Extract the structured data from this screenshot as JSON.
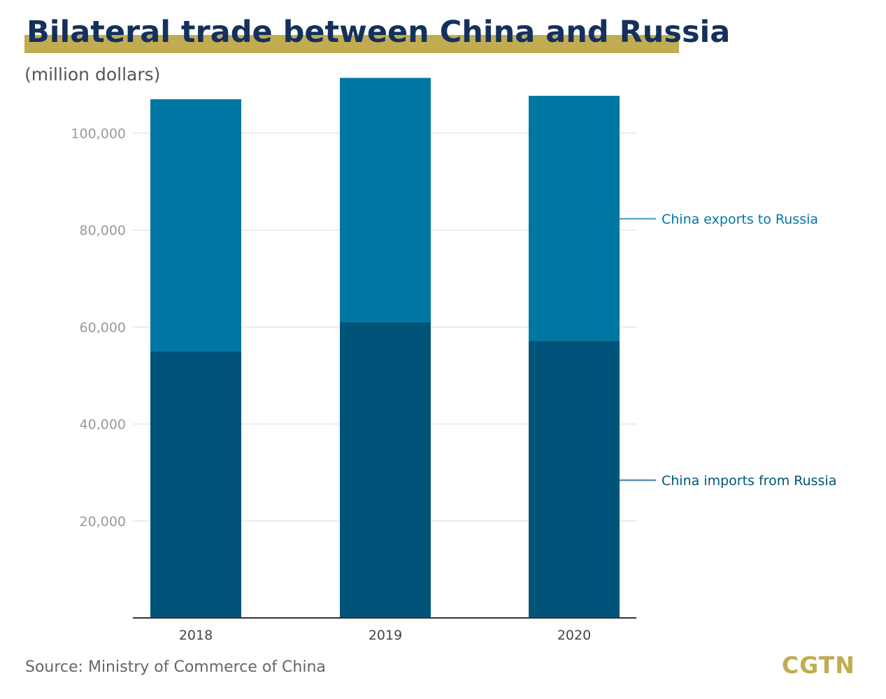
{
  "header": {
    "title": "Bilateral trade between China and Russia",
    "unit": "(million dollars)"
  },
  "footer": {
    "source": "Source: Ministry of Commerce of China",
    "logo": "CGTN"
  },
  "colors": {
    "exports": "#0077a3",
    "imports": "#00547a",
    "title": "#14305c",
    "accent": "#c2ac52",
    "grid": "#e6e6e6",
    "axis": "#333333"
  },
  "chart_data": {
    "type": "bar",
    "stacked": true,
    "title": "Bilateral trade between China and Russia",
    "ylabel": "(million dollars)",
    "xlabel": "",
    "categories": [
      "2018",
      "2019",
      "2020"
    ],
    "series": [
      {
        "name": "China imports from Russia",
        "values": [
          55000,
          61000,
          57200
        ]
      },
      {
        "name": "China exports to Russia",
        "values": [
          52000,
          50400,
          50500
        ]
      }
    ],
    "ylim": [
      0,
      110000
    ],
    "yticks": [
      20000,
      40000,
      60000,
      80000,
      100000
    ],
    "ytick_labels": [
      "20,000",
      "40,000",
      "60,000",
      "80,000",
      "100,000"
    ],
    "grid": true,
    "legend": "direct labels on right"
  }
}
